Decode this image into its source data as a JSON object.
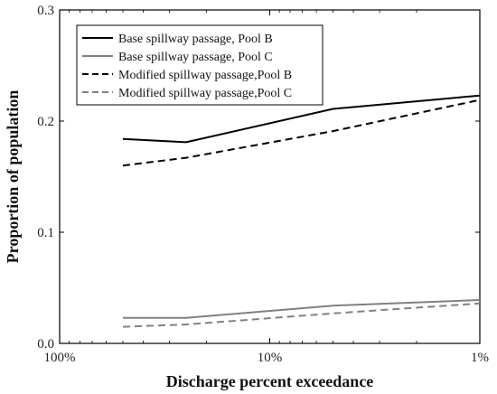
{
  "chart_data": {
    "type": "line",
    "xscale": "log-reversed",
    "xlabel": "Discharge percent exceedance",
    "ylabel": "Proportion of population",
    "xlim": [
      100,
      1
    ],
    "ylim": [
      0,
      0.3
    ],
    "x_ticks": [
      100,
      10,
      1
    ],
    "x_tick_labels": [
      "100%",
      "10%",
      "1%"
    ],
    "y_ticks": [
      0,
      0.1,
      0.2,
      0.3
    ],
    "y_tick_labels": [
      "0.0",
      "0.1",
      "0.2",
      "0.3"
    ],
    "grid": false,
    "legend_position": "top-left",
    "x": [
      50,
      25,
      5,
      1
    ],
    "series": [
      {
        "name": "Base spillway passage, Pool B",
        "values": [
          0.184,
          0.181,
          0.211,
          0.223
        ],
        "color": "#000000",
        "dash": "solid"
      },
      {
        "name": "Base spillway passage, Pool C",
        "values": [
          0.023,
          0.023,
          0.034,
          0.039
        ],
        "color": "#808080",
        "dash": "solid"
      },
      {
        "name": "Modified spillway passage,Pool B",
        "values": [
          0.16,
          0.167,
          0.191,
          0.219
        ],
        "color": "#000000",
        "dash": "dashed"
      },
      {
        "name": "Modified spillway passage,Pool C",
        "values": [
          0.015,
          0.017,
          0.027,
          0.036
        ],
        "color": "#808080",
        "dash": "dashed"
      }
    ]
  }
}
